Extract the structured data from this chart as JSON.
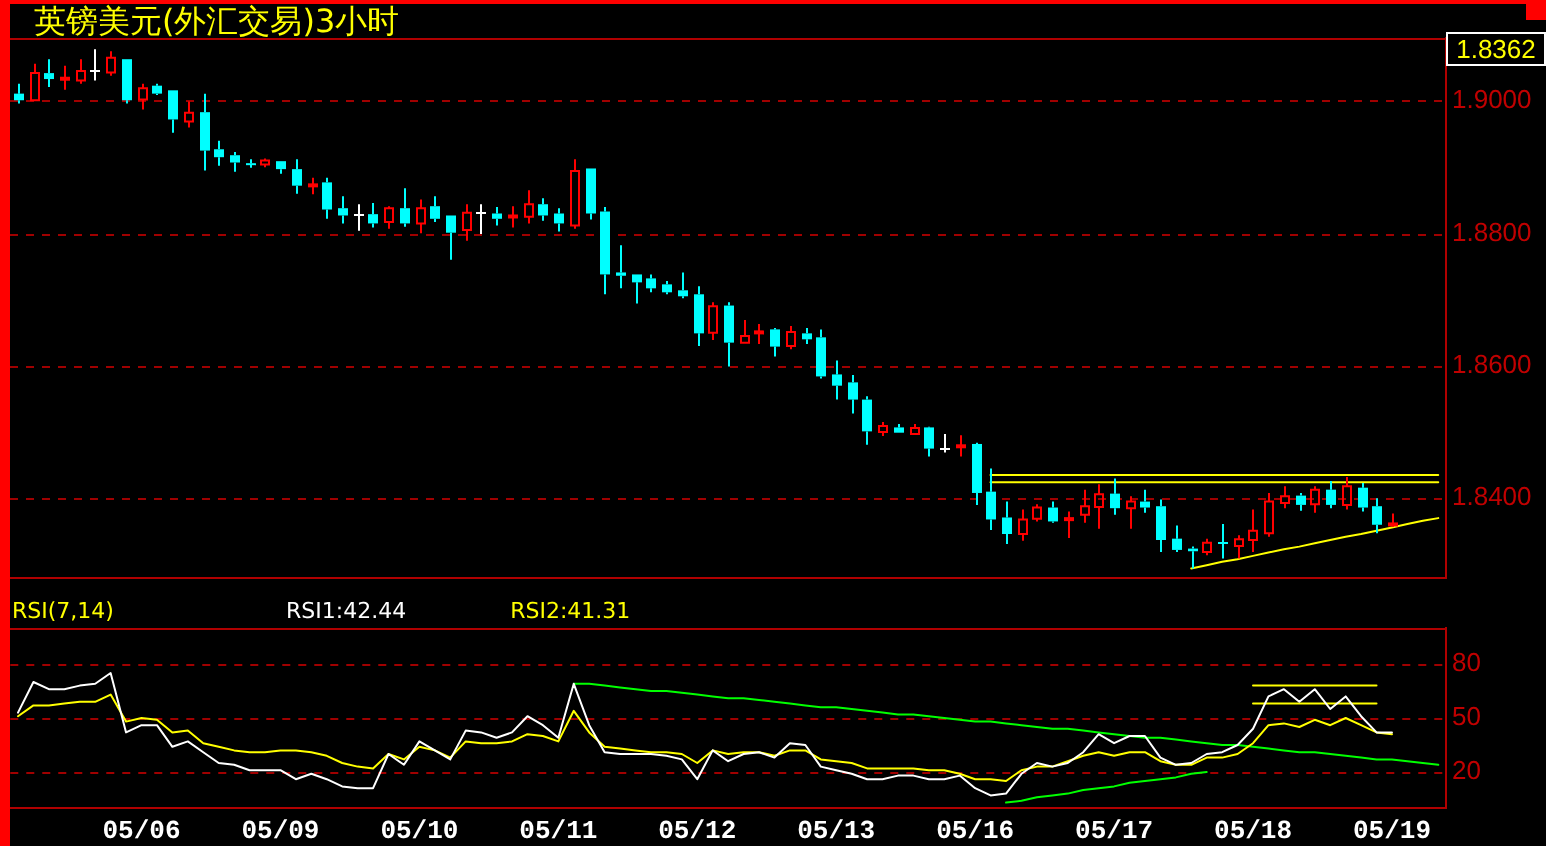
{
  "chart_data": [
    {
      "type": "candlestick",
      "title": "英镑美元(外汇交易)3小时",
      "ohlc": [
        [
          1.9011,
          1.9026,
          1.8996,
          1.9001
        ],
        [
          1.9001,
          1.9056,
          1.9001,
          1.9042
        ],
        [
          1.9042,
          1.9063,
          1.9021,
          1.9033
        ],
        [
          1.9034,
          1.9053,
          1.9017,
          1.9035
        ],
        [
          1.9031,
          1.9063,
          1.9026,
          1.9045
        ],
        [
          1.9046,
          1.9078,
          1.9031,
          1.9046
        ],
        [
          1.9043,
          1.9075,
          1.9038,
          1.9065
        ],
        [
          1.9063,
          1.9063,
          1.8996,
          1.9001
        ],
        [
          1.9002,
          1.9026,
          1.8987,
          1.9019
        ],
        [
          1.9023,
          1.9026,
          1.9009,
          1.9011
        ],
        [
          1.9016,
          1.9016,
          1.8952,
          1.8972
        ],
        [
          1.8969,
          1.8999,
          1.896,
          1.8982
        ],
        [
          1.8983,
          1.9011,
          1.8895,
          1.8925
        ],
        [
          1.8927,
          1.894,
          1.8902,
          1.8915
        ],
        [
          1.8918,
          1.8923,
          1.8893,
          1.8907
        ],
        [
          1.8906,
          1.8912,
          1.8899,
          1.8904
        ],
        [
          1.8904,
          1.8913,
          1.89,
          1.891
        ],
        [
          1.8909,
          1.8909,
          1.889,
          1.8897
        ],
        [
          1.8897,
          1.8912,
          1.886,
          1.8872
        ],
        [
          1.8871,
          1.8884,
          1.8859,
          1.8874
        ],
        [
          1.8877,
          1.8884,
          1.8822,
          1.8836
        ],
        [
          1.8838,
          1.8856,
          1.8815,
          1.8827
        ],
        [
          1.8829,
          1.8844,
          1.8804,
          1.8829
        ],
        [
          1.8829,
          1.8846,
          1.8809,
          1.8815
        ],
        [
          1.8817,
          1.8841,
          1.8807,
          1.8838
        ],
        [
          1.8838,
          1.8868,
          1.881,
          1.8815
        ],
        [
          1.8815,
          1.8851,
          1.88,
          1.8838
        ],
        [
          1.8841,
          1.8856,
          1.8817,
          1.8822
        ],
        [
          1.8827,
          1.8827,
          1.876,
          1.8801
        ],
        [
          1.8805,
          1.8844,
          1.8789,
          1.8831
        ],
        [
          1.8831,
          1.8844,
          1.8799,
          1.8831
        ],
        [
          1.883,
          1.884,
          1.8812,
          1.8822
        ],
        [
          1.8824,
          1.8841,
          1.8809,
          1.8827
        ],
        [
          1.8825,
          1.8865,
          1.8815,
          1.8844
        ],
        [
          1.8844,
          1.8853,
          1.8819,
          1.8827
        ],
        [
          1.883,
          1.8838,
          1.8803,
          1.8815
        ],
        [
          1.8812,
          1.8912,
          1.8807,
          1.8894
        ],
        [
          1.8898,
          1.8898,
          1.8821,
          1.883
        ],
        [
          1.8833,
          1.884,
          1.8708,
          1.8738
        ],
        [
          1.8741,
          1.8782,
          1.8717,
          1.8736
        ],
        [
          1.8738,
          1.8738,
          1.8694,
          1.8726
        ],
        [
          1.8732,
          1.8738,
          1.8711,
          1.8717
        ],
        [
          1.8723,
          1.8728,
          1.8708,
          1.8711
        ],
        [
          1.8714,
          1.8741,
          1.8702,
          1.8705
        ],
        [
          1.8708,
          1.872,
          1.863,
          1.8649
        ],
        [
          1.865,
          1.8696,
          1.8639,
          1.869
        ],
        [
          1.8691,
          1.8696,
          1.8599,
          1.8635
        ],
        [
          1.8635,
          1.8669,
          1.8635,
          1.8645
        ],
        [
          1.8649,
          1.8663,
          1.8633,
          1.8652
        ],
        [
          1.8655,
          1.8657,
          1.8614,
          1.8629
        ],
        [
          1.863,
          1.866,
          1.8625,
          1.8651
        ],
        [
          1.8649,
          1.8657,
          1.8633,
          1.864
        ],
        [
          1.8643,
          1.8655,
          1.8581,
          1.8584
        ],
        [
          1.8587,
          1.8608,
          1.8549,
          1.857
        ],
        [
          1.8575,
          1.8586,
          1.8528,
          1.8549
        ],
        [
          1.8549,
          1.8554,
          1.8481,
          1.8501
        ],
        [
          1.85,
          1.8515,
          1.8494,
          1.8509
        ],
        [
          1.8507,
          1.8512,
          1.8499,
          1.8499
        ],
        [
          1.8497,
          1.8512,
          1.8497,
          1.8506
        ],
        [
          1.8507,
          1.8508,
          1.8463,
          1.8475
        ],
        [
          1.8477,
          1.8497,
          1.8469,
          1.8477
        ],
        [
          1.8477,
          1.8495,
          1.8463,
          1.848
        ],
        [
          1.8482,
          1.8484,
          1.839,
          1.8408
        ],
        [
          1.841,
          1.8445,
          1.8352,
          1.8368
        ],
        [
          1.8371,
          1.8395,
          1.8331,
          1.8346
        ],
        [
          1.8346,
          1.8383,
          1.8336,
          1.8368
        ],
        [
          1.8369,
          1.8391,
          1.8365,
          1.8386
        ],
        [
          1.8386,
          1.8395,
          1.8363,
          1.8365
        ],
        [
          1.8367,
          1.838,
          1.834,
          1.837
        ],
        [
          1.8375,
          1.8413,
          1.8363,
          1.8388
        ],
        [
          1.8387,
          1.8421,
          1.8354,
          1.8406
        ],
        [
          1.8407,
          1.843,
          1.8375,
          1.8385
        ],
        [
          1.8385,
          1.8403,
          1.8354,
          1.8395
        ],
        [
          1.8395,
          1.8413,
          1.8378,
          1.8386
        ],
        [
          1.8388,
          1.8398,
          1.8319,
          1.8337
        ],
        [
          1.8339,
          1.8359,
          1.8319,
          1.8322
        ],
        [
          1.8324,
          1.8327,
          1.8294,
          1.832
        ],
        [
          1.8319,
          1.8339,
          1.8314,
          1.8333
        ],
        [
          1.8334,
          1.8361,
          1.8309,
          1.8331
        ],
        [
          1.8328,
          1.8344,
          1.8309,
          1.8338
        ],
        [
          1.8337,
          1.8383,
          1.8319,
          1.8351
        ],
        [
          1.8347,
          1.8408,
          1.8342,
          1.8395
        ],
        [
          1.8393,
          1.8418,
          1.8385,
          1.8403
        ],
        [
          1.8404,
          1.8408,
          1.8381,
          1.839
        ],
        [
          1.8391,
          1.8418,
          1.8378,
          1.8413
        ],
        [
          1.8413,
          1.8426,
          1.8385,
          1.839
        ],
        [
          1.839,
          1.8432,
          1.8383,
          1.8418
        ],
        [
          1.8416,
          1.8423,
          1.838,
          1.8386
        ],
        [
          1.8388,
          1.84,
          1.8347,
          1.836
        ],
        [
          1.8359,
          1.8377,
          1.8357,
          1.8362
        ],
        null,
        null,
        null
      ],
      "colors": [
        "#00ffff",
        "#ff0000",
        "#00ffff",
        "#ff0000",
        "#ff0000",
        "#ffffff",
        "#ff0000",
        "#00ffff",
        "#ff0000",
        "#00ffff",
        "#00ffff",
        "#ff0000",
        "#00ffff",
        "#00ffff",
        "#00ffff",
        "#00ffff",
        "#ff0000",
        "#00ffff",
        "#00ffff",
        "#ff0000",
        "#00ffff",
        "#00ffff",
        "#ffffff",
        "#00ffff",
        "#ff0000",
        "#00ffff",
        "#ff0000",
        "#00ffff",
        "#00ffff",
        "#ff0000",
        "#ffffff",
        "#00ffff",
        "#ff0000",
        "#ff0000",
        "#00ffff",
        "#00ffff",
        "#ff0000",
        "#00ffff",
        "#00ffff",
        "#00ffff",
        "#00ffff",
        "#00ffff",
        "#00ffff",
        "#00ffff",
        "#00ffff",
        "#ff0000",
        "#00ffff",
        "#ff0000",
        "#ff0000",
        "#00ffff",
        "#ff0000",
        "#00ffff",
        "#00ffff",
        "#00ffff",
        "#00ffff",
        "#00ffff",
        "#ff0000",
        "#00ffff",
        "#ff0000",
        "#00ffff",
        "#ffffff",
        "#ff0000",
        "#00ffff",
        "#00ffff",
        "#00ffff",
        "#ff0000",
        "#ff0000",
        "#00ffff",
        "#ff0000",
        "#ff0000",
        "#ff0000",
        "#00ffff",
        "#ff0000",
        "#00ffff",
        "#00ffff",
        "#00ffff",
        "#00ffff",
        "#ff0000",
        "#00ffff",
        "#ff0000",
        "#ff0000",
        "#ff0000",
        "#ff0000",
        "#00ffff",
        "#ff0000",
        "#00ffff",
        "#ff0000",
        "#00ffff",
        "#00ffff",
        "#ff0000",
        null,
        null,
        null
      ],
      "series": [
        {
          "type": "line",
          "color": "#ffff00",
          "values": [
            null,
            null,
            null,
            null,
            null,
            null,
            null,
            null,
            null,
            null,
            null,
            null,
            null,
            null,
            null,
            null,
            null,
            null,
            null,
            null,
            null,
            null,
            null,
            null,
            null,
            null,
            null,
            null,
            null,
            null,
            null,
            null,
            null,
            null,
            null,
            null,
            null,
            null,
            null,
            null,
            null,
            null,
            null,
            null,
            null,
            null,
            null,
            null,
            null,
            null,
            null,
            null,
            null,
            null,
            null,
            null,
            null,
            null,
            null,
            null,
            null,
            null,
            null,
            1.8435,
            1.8435,
            1.8435,
            1.8435,
            1.8435,
            1.8435,
            1.8435,
            1.8435,
            1.8435,
            1.8435,
            1.8435,
            1.8435,
            1.8435,
            1.8435,
            1.8435,
            1.8435,
            1.8435,
            1.8435,
            1.8435,
            1.8435,
            1.8435,
            1.8435,
            1.8435,
            1.8435,
            1.8435,
            1.8435,
            1.8435,
            1.8435,
            1.8435,
            1.8435
          ]
        },
        {
          "type": "line",
          "color": "#ffff00",
          "values": [
            null,
            null,
            null,
            null,
            null,
            null,
            null,
            null,
            null,
            null,
            null,
            null,
            null,
            null,
            null,
            null,
            null,
            null,
            null,
            null,
            null,
            null,
            null,
            null,
            null,
            null,
            null,
            null,
            null,
            null,
            null,
            null,
            null,
            null,
            null,
            null,
            null,
            null,
            null,
            null,
            null,
            null,
            null,
            null,
            null,
            null,
            null,
            null,
            null,
            null,
            null,
            null,
            null,
            null,
            null,
            null,
            null,
            null,
            null,
            null,
            null,
            null,
            null,
            1.8424,
            1.8424,
            1.8424,
            1.8424,
            1.8424,
            1.8424,
            1.8424,
            1.8424,
            1.8424,
            1.8424,
            1.8424,
            1.8424,
            1.8424,
            1.8424,
            1.8424,
            1.8424,
            1.8424,
            1.8424,
            1.8424,
            1.8424,
            1.8424,
            1.8424,
            1.8424,
            1.8424,
            1.8424,
            1.8424,
            1.8424,
            1.8424,
            1.8424,
            1.8424
          ]
        },
        {
          "type": "line",
          "color": "#ffff00",
          "values": [
            null,
            null,
            null,
            null,
            null,
            null,
            null,
            null,
            null,
            null,
            null,
            null,
            null,
            null,
            null,
            null,
            null,
            null,
            null,
            null,
            null,
            null,
            null,
            null,
            null,
            null,
            null,
            null,
            null,
            null,
            null,
            null,
            null,
            null,
            null,
            null,
            null,
            null,
            null,
            null,
            null,
            null,
            null,
            null,
            null,
            null,
            null,
            null,
            null,
            null,
            null,
            null,
            null,
            null,
            null,
            null,
            null,
            null,
            null,
            null,
            null,
            null,
            null,
            null,
            null,
            null,
            null,
            null,
            null,
            null,
            null,
            null,
            null,
            null,
            null,
            null,
            1.8294,
            1.8299,
            1.8304,
            1.8308,
            1.8313,
            1.8318,
            1.8323,
            1.8327,
            1.8332,
            1.8337,
            1.8342,
            1.8346,
            1.8351,
            1.8356,
            1.8361,
            1.8366,
            1.837
          ]
        }
      ],
      "ylim": [
        1.8279,
        1.9095
      ],
      "yticks": [
        {
          "value": 1.84,
          "label": "1.8400"
        },
        {
          "value": 1.86,
          "label": "1.8600"
        },
        {
          "value": 1.88,
          "label": "1.8800"
        },
        {
          "value": 1.9,
          "label": "1.9000"
        }
      ],
      "grid": "y",
      "tick_labels": "y",
      "annotations": [
        "1.8362"
      ]
    },
    {
      "type": "line",
      "title": "RSI(7,14)",
      "categories": [
        null,
        null,
        null,
        null,
        null,
        null,
        null,
        null,
        "05/06",
        null,
        null,
        null,
        null,
        null,
        null,
        null,
        null,
        "05/09",
        null,
        null,
        null,
        null,
        null,
        null,
        null,
        null,
        "05/10",
        null,
        null,
        null,
        null,
        null,
        null,
        null,
        null,
        "05/11",
        null,
        null,
        null,
        null,
        null,
        null,
        null,
        null,
        "05/12",
        null,
        null,
        null,
        null,
        null,
        null,
        null,
        null,
        "05/13",
        null,
        null,
        null,
        null,
        null,
        null,
        null,
        null,
        "05/16",
        null,
        null,
        null,
        null,
        null,
        null,
        null,
        null,
        "05/17",
        null,
        null,
        null,
        null,
        null,
        null,
        null,
        null,
        "05/18",
        null,
        null,
        null,
        null,
        null,
        null,
        null,
        null,
        "05/19",
        null,
        null,
        null
      ],
      "series": [
        {
          "name": "RSI1:42.44",
          "color": "#ffffff",
          "values": [
            53,
            70,
            66,
            66,
            68,
            69,
            75,
            42,
            46,
            46,
            34,
            37,
            31,
            25,
            24,
            21,
            21,
            21,
            16,
            19,
            16,
            12,
            11,
            11,
            30,
            24,
            37,
            32,
            27,
            43,
            42,
            39,
            42,
            51,
            46,
            39,
            69,
            46,
            31,
            30,
            30,
            30,
            29,
            27,
            16,
            32,
            26,
            30,
            31,
            28,
            36,
            35,
            23,
            21,
            19,
            16,
            16,
            18,
            18,
            16,
            16,
            18,
            11,
            7,
            8,
            19,
            25,
            23,
            25,
            31,
            41,
            36,
            40,
            40,
            28,
            24,
            25,
            30,
            31,
            35,
            44,
            62,
            66,
            59,
            66,
            55,
            62,
            51,
            42,
            42,
            null,
            null,
            null
          ]
        },
        {
          "name": "RSI2:41.31",
          "color": "#ffff00",
          "values": [
            51,
            57,
            57,
            58,
            59,
            59,
            63,
            48,
            50,
            49,
            42,
            43,
            36,
            34,
            32,
            31,
            31,
            32,
            32,
            31,
            29,
            25,
            23,
            22,
            30,
            27,
            34,
            32,
            28,
            37,
            36,
            36,
            37,
            41,
            40,
            37,
            54,
            42,
            34,
            33,
            32,
            31,
            31,
            30,
            25,
            32,
            30,
            31,
            31,
            29,
            32,
            32,
            27,
            26,
            25,
            22,
            22,
            22,
            22,
            21,
            21,
            19,
            16,
            16,
            15,
            21,
            23,
            23,
            26,
            29,
            31,
            29,
            31,
            31,
            26,
            24,
            24,
            28,
            28,
            30,
            36,
            46,
            47,
            45,
            49,
            46,
            50,
            46,
            42,
            41,
            null,
            null,
            null
          ]
        },
        {
          "type": "line",
          "color": "#00ff00",
          "values": [
            null,
            null,
            null,
            null,
            null,
            null,
            null,
            null,
            null,
            null,
            null,
            null,
            null,
            null,
            null,
            null,
            null,
            null,
            null,
            null,
            null,
            null,
            null,
            null,
            null,
            null,
            null,
            null,
            null,
            null,
            null,
            null,
            null,
            null,
            null,
            null,
            69,
            69,
            68,
            67,
            66,
            65,
            65,
            64,
            63,
            62,
            61,
            61,
            60,
            59,
            58,
            57,
            56,
            56,
            55,
            54,
            53,
            52,
            52,
            51,
            50,
            49,
            48,
            48,
            47,
            46,
            45,
            44,
            44,
            43,
            42,
            41,
            40,
            39,
            39,
            38,
            37,
            36,
            35,
            35,
            34,
            33,
            32,
            31,
            31,
            30,
            29,
            28,
            27,
            27,
            26,
            25,
            24
          ]
        },
        {
          "type": "line",
          "color": "#00ff00",
          "values": [
            null,
            null,
            null,
            null,
            null,
            null,
            null,
            null,
            null,
            null,
            null,
            null,
            null,
            null,
            null,
            null,
            null,
            null,
            null,
            null,
            null,
            null,
            null,
            null,
            null,
            null,
            null,
            null,
            null,
            null,
            null,
            null,
            null,
            null,
            null,
            null,
            null,
            null,
            null,
            null,
            null,
            null,
            null,
            null,
            null,
            null,
            null,
            null,
            null,
            null,
            null,
            null,
            null,
            null,
            null,
            null,
            null,
            null,
            null,
            null,
            null,
            null,
            null,
            null,
            3,
            4,
            6,
            7,
            8,
            10,
            11,
            12,
            14,
            15,
            16,
            17,
            19,
            20,
            null,
            null,
            null,
            null,
            null,
            null,
            null,
            null,
            null,
            null,
            null,
            null,
            null,
            null,
            null
          ]
        },
        {
          "type": "line",
          "color": "#ffff00",
          "values": [
            null,
            null,
            null,
            null,
            null,
            null,
            null,
            null,
            null,
            null,
            null,
            null,
            null,
            null,
            null,
            null,
            null,
            null,
            null,
            null,
            null,
            null,
            null,
            null,
            null,
            null,
            null,
            null,
            null,
            null,
            null,
            null,
            null,
            null,
            null,
            null,
            null,
            null,
            null,
            null,
            null,
            null,
            null,
            null,
            null,
            null,
            null,
            null,
            null,
            null,
            null,
            null,
            null,
            null,
            null,
            null,
            null,
            null,
            null,
            null,
            null,
            null,
            null,
            null,
            null,
            null,
            null,
            null,
            null,
            null,
            null,
            null,
            null,
            null,
            null,
            null,
            null,
            null,
            null,
            null,
            68,
            68,
            68,
            68,
            68,
            68,
            68,
            68,
            68,
            null,
            null,
            null,
            null
          ]
        },
        {
          "type": "line",
          "color": "#ffff00",
          "values": [
            null,
            null,
            null,
            null,
            null,
            null,
            null,
            null,
            null,
            null,
            null,
            null,
            null,
            null,
            null,
            null,
            null,
            null,
            null,
            null,
            null,
            null,
            null,
            null,
            null,
            null,
            null,
            null,
            null,
            null,
            null,
            null,
            null,
            null,
            null,
            null,
            null,
            null,
            null,
            null,
            null,
            null,
            null,
            null,
            null,
            null,
            null,
            null,
            null,
            null,
            null,
            null,
            null,
            null,
            null,
            null,
            null,
            null,
            null,
            null,
            null,
            null,
            null,
            null,
            null,
            null,
            null,
            null,
            null,
            null,
            null,
            null,
            null,
            null,
            null,
            null,
            null,
            null,
            null,
            null,
            58,
            58,
            58,
            58,
            58,
            58,
            58,
            58,
            58,
            null,
            null,
            null,
            null
          ]
        }
      ],
      "ylim": [
        0,
        100
      ],
      "yticks": [
        20,
        50,
        80
      ],
      "grid": "y",
      "legend": "top left"
    }
  ]
}
